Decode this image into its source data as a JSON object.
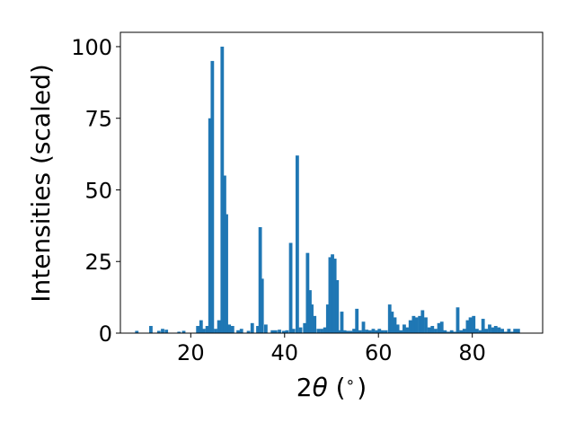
{
  "chart_data": {
    "type": "bar",
    "title": "",
    "xlabel_prefix": "2",
    "xlabel_symbol": "θ",
    "xlabel_suffix": " (",
    "xlabel_unit": "∘",
    "xlabel_close": ")",
    "ylabel": "Intensities (scaled)",
    "xlim": [
      5,
      95
    ],
    "ylim": [
      0,
      105
    ],
    "xticks": [
      20,
      40,
      60,
      80
    ],
    "yticks": [
      0,
      25,
      50,
      75,
      100
    ],
    "bar_width": 0.5,
    "grid": false,
    "color": "#1f77b4",
    "x": [
      8.5,
      11.5,
      13.2,
      14.0,
      14.8,
      17.5,
      18.5,
      21.5,
      22.2,
      22.8,
      23.5,
      24.1,
      24.6,
      25.3,
      26.0,
      26.7,
      27.2,
      27.6,
      28.2,
      28.9,
      30.1,
      30.8,
      32.3,
      33.1,
      34.3,
      34.8,
      35.2,
      36.0,
      37.4,
      38.1,
      38.9,
      39.8,
      40.5,
      41.3,
      41.9,
      42.7,
      43.4,
      44.3,
      44.9,
      45.4,
      45.8,
      46.4,
      47.2,
      47.9,
      48.6,
      49.2,
      49.7,
      50.2,
      50.7,
      51.2,
      51.7,
      52.2,
      52.8,
      53.4,
      54.1,
      54.8,
      55.4,
      56.1,
      56.8,
      57.5,
      58.2,
      58.9,
      59.6,
      60.2,
      60.9,
      61.6,
      62.4,
      62.9,
      63.5,
      64.1,
      64.8,
      65.5,
      66.1,
      66.8,
      67.5,
      68.1,
      68.8,
      69.4,
      70.1,
      70.8,
      71.5,
      72.2,
      72.9,
      73.5,
      74.2,
      74.9,
      75.6,
      76.2,
      76.9,
      77.6,
      78.3,
      79.0,
      79.6,
      80.3,
      81.0,
      81.7,
      82.3,
      83.0,
      83.7,
      84.4,
      85.0,
      85.7,
      86.4,
      87.1,
      87.8,
      88.5,
      89.1,
      89.8
    ],
    "values": [
      0.8,
      2.5,
      0.8,
      1.5,
      1.2,
      0.5,
      0.8,
      2.5,
      4.5,
      1.5,
      2.5,
      75,
      95,
      1.5,
      4.5,
      100,
      55,
      41.5,
      3,
      2.5,
      1,
      1.5,
      0.8,
      3.5,
      2.5,
      37,
      19,
      3,
      1,
      1,
      1.2,
      0.8,
      1,
      31.5,
      1.5,
      62,
      2,
      3.5,
      28,
      15,
      10,
      6,
      1.5,
      1.5,
      2,
      10,
      26.5,
      27.5,
      26,
      18.5,
      1,
      7.5,
      1,
      0.8,
      0.8,
      1.5,
      8.5,
      1,
      4,
      1.2,
      1,
      1.5,
      1,
      1.5,
      1,
      1,
      10,
      7.5,
      5.5,
      3,
      1,
      3,
      2,
      4.5,
      6,
      5.5,
      6,
      8,
      5.5,
      2,
      2.5,
      1.5,
      3.5,
      4,
      1,
      0.5,
      1,
      0.5,
      9,
      1,
      1.5,
      4.5,
      5.5,
      6,
      1.5,
      1,
      5,
      1.5,
      3,
      2,
      2.5,
      2,
      1.5,
      0.5,
      1.5,
      0.5,
      1.5,
      1.5
    ]
  }
}
